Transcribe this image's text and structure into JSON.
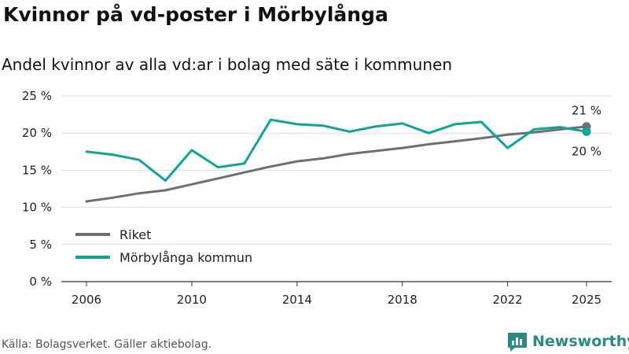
{
  "title": "Kvinnor på vd-poster i Mörbylånga",
  "subtitle": "Andel kvinnor av alla vd:ar i bolag med säte i kommunen",
  "source": "Källa: Bolagsverket. Gäller aktiebolag.",
  "brand": "Newsworthy",
  "colors": {
    "riket": "#706e72",
    "morbylanga": "#0ea597",
    "grid": "#dddddd",
    "brand": "#2a8a86"
  },
  "chart_data": {
    "type": "line",
    "x": [
      2006,
      2007,
      2008,
      2009,
      2010,
      2011,
      2012,
      2013,
      2014,
      2015,
      2016,
      2017,
      2018,
      2019,
      2020,
      2021,
      2022,
      2023,
      2024,
      2025
    ],
    "series": [
      {
        "name": "Riket",
        "values": [
          10.8,
          11.3,
          11.9,
          12.3,
          13.1,
          13.9,
          14.7,
          15.5,
          16.2,
          16.6,
          17.2,
          17.6,
          18.0,
          18.5,
          18.9,
          19.3,
          19.8,
          20.1,
          20.5,
          20.9
        ]
      },
      {
        "name": "Mörbylånga kommun",
        "values": [
          17.5,
          17.1,
          16.4,
          13.6,
          17.7,
          15.4,
          15.9,
          21.8,
          21.2,
          21.0,
          20.2,
          20.9,
          21.3,
          20.0,
          21.2,
          21.5,
          18.0,
          20.5,
          20.8,
          20.2
        ]
      }
    ],
    "end_labels": [
      "21 %",
      "20 %"
    ],
    "ylim": [
      0,
      25
    ],
    "yticks": [
      0,
      5,
      10,
      15,
      20,
      25
    ],
    "ytick_labels": [
      "0 %",
      "5 %",
      "10 %",
      "15 %",
      "20 %",
      "25 %"
    ],
    "xticks": [
      2006,
      2010,
      2014,
      2018,
      2022,
      2025
    ],
    "xtick_labels": [
      "2006",
      "2010",
      "2014",
      "2018",
      "2022",
      "2025"
    ],
    "grid": true,
    "legend": "bottom-left"
  }
}
